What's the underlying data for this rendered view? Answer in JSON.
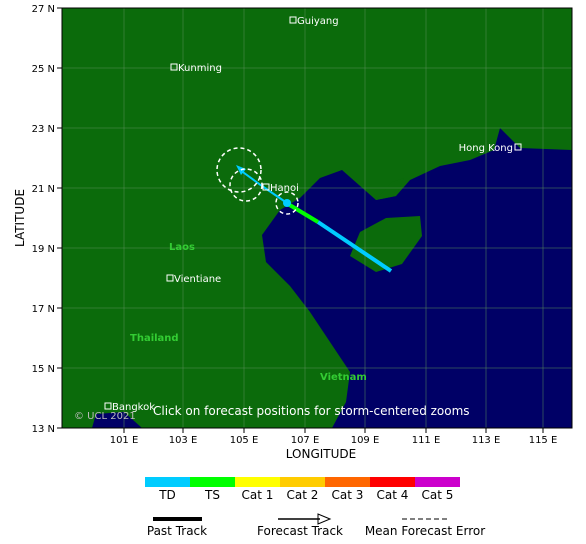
{
  "map": {
    "axes": {
      "x_label": "LONGITUDE",
      "y_label": "LATITUDE",
      "x_ticks": [
        "101 E",
        "103 E",
        "105 E",
        "107 E",
        "109 E",
        "111 E",
        "113 E",
        "115 E"
      ],
      "y_ticks": [
        "27 N",
        "25 N",
        "23 N",
        "21 N",
        "19 N",
        "17 N",
        "15 N",
        "13 N"
      ]
    },
    "cities": [
      "Guiyang",
      "Kunming",
      "Hanoi",
      "Hong Kong",
      "Vientiane",
      "Bangkok"
    ],
    "countries": [
      "Laos",
      "Thailand",
      "Vietnam"
    ],
    "copyright": "© UCL 2021",
    "instruction": "Click on forecast positions for storm-centered zooms"
  },
  "intensity_legend": [
    {
      "label": "TD",
      "color": "#00ccff"
    },
    {
      "label": "TS",
      "color": "#00ff00"
    },
    {
      "label": "Cat 1",
      "color": "#ffff00"
    },
    {
      "label": "Cat 2",
      "color": "#ffcc00"
    },
    {
      "label": "Cat 3",
      "color": "#ff6600"
    },
    {
      "label": "Cat 4",
      "color": "#ff0000"
    },
    {
      "label": "Cat 5",
      "color": "#cc00cc"
    }
  ],
  "track_legend": [
    "Past Track",
    "Forecast Track",
    "Mean Forecast Error"
  ]
}
